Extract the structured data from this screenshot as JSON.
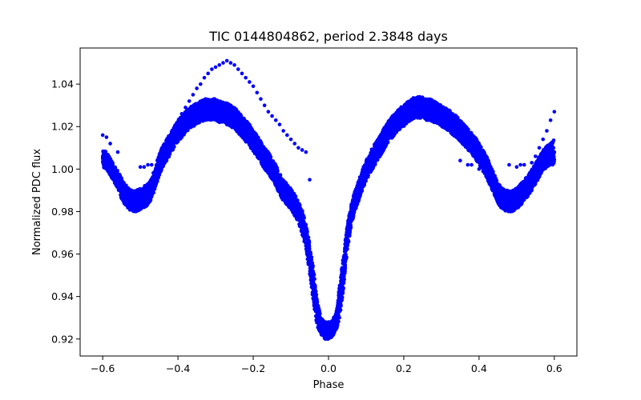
{
  "chart_data": {
    "type": "scatter",
    "title": "TIC 0144804862, period 2.3848 days",
    "xlabel": "Phase",
    "ylabel": "Normalized PDC flux",
    "xlim": [
      -0.66,
      0.66
    ],
    "ylim": [
      0.912,
      1.057
    ],
    "xticks": [
      -0.6,
      -0.4,
      -0.2,
      0.0,
      0.2,
      0.4,
      0.6
    ],
    "xtick_labels": [
      "−0.6",
      "−0.4",
      "−0.2",
      "0.0",
      "0.2",
      "0.4",
      "0.6"
    ],
    "yticks": [
      0.92,
      0.94,
      0.96,
      0.98,
      1.0,
      1.02,
      1.04
    ],
    "ytick_labels": [
      "0.92",
      "0.94",
      "0.96",
      "0.98",
      "1.00",
      "1.02",
      "1.04"
    ],
    "grid": false,
    "marker_color": "#0000ff",
    "series": [
      {
        "name": "",
        "x": [
          -0.6,
          -0.59,
          -0.58,
          -0.57,
          -0.56,
          -0.55,
          -0.54,
          -0.53,
          -0.52,
          -0.51,
          -0.5,
          -0.49,
          -0.48,
          -0.47,
          -0.46,
          -0.45,
          -0.44,
          -0.43,
          -0.42,
          -0.41,
          -0.4,
          -0.39,
          -0.38,
          -0.37,
          -0.36,
          -0.35,
          -0.34,
          -0.33,
          -0.32,
          -0.31,
          -0.3,
          -0.29,
          -0.28,
          -0.27,
          -0.26,
          -0.25,
          -0.24,
          -0.23,
          -0.22,
          -0.21,
          -0.2,
          -0.19,
          -0.18,
          -0.17,
          -0.16,
          -0.15,
          -0.14,
          -0.13,
          -0.12,
          -0.11,
          -0.1,
          -0.09,
          -0.08,
          -0.07,
          -0.06,
          -0.05,
          -0.04,
          -0.03,
          -0.02,
          -0.01,
          0.0,
          0.01,
          0.02,
          0.03,
          0.04,
          0.05,
          0.06,
          0.07,
          0.08,
          0.09,
          0.1,
          0.11,
          0.12,
          0.13,
          0.14,
          0.15,
          0.16,
          0.17,
          0.18,
          0.19,
          0.2,
          0.21,
          0.22,
          0.23,
          0.24,
          0.25,
          0.26,
          0.27,
          0.28,
          0.29,
          0.3,
          0.31,
          0.32,
          0.33,
          0.34,
          0.35,
          0.36,
          0.37,
          0.38,
          0.39,
          0.4,
          0.41,
          0.42,
          0.43,
          0.44,
          0.45,
          0.46,
          0.47,
          0.48,
          0.49,
          0.5,
          0.51,
          0.52,
          0.53,
          0.54,
          0.55,
          0.56,
          0.57,
          0.58,
          0.59,
          0.6
        ],
        "y": [
          1.005,
          1.004,
          1.001,
          0.998,
          0.995,
          0.991,
          0.988,
          0.986,
          0.985,
          0.985,
          0.986,
          0.987,
          0.988,
          0.991,
          0.996,
          1.002,
          1.006,
          1.009,
          1.012,
          1.015,
          1.018,
          1.02,
          1.022,
          1.024,
          1.025,
          1.026,
          1.027,
          1.028,
          1.028,
          1.028,
          1.028,
          1.027,
          1.027,
          1.026,
          1.025,
          1.024,
          1.022,
          1.02,
          1.018,
          1.016,
          1.013,
          1.011,
          1.008,
          1.005,
          1.003,
          1.0,
          0.997,
          0.993,
          0.99,
          0.988,
          0.986,
          0.983,
          0.98,
          0.975,
          0.968,
          0.958,
          0.945,
          0.932,
          0.926,
          0.924,
          0.924,
          0.925,
          0.928,
          0.938,
          0.952,
          0.968,
          0.978,
          0.985,
          0.99,
          0.995,
          0.999,
          1.003,
          1.006,
          1.009,
          1.012,
          1.015,
          1.018,
          1.02,
          1.022,
          1.024,
          1.025,
          1.027,
          1.028,
          1.029,
          1.029,
          1.029,
          1.028,
          1.028,
          1.027,
          1.026,
          1.025,
          1.024,
          1.023,
          1.021,
          1.02,
          1.018,
          1.016,
          1.014,
          1.012,
          1.01,
          1.007,
          1.004,
          1.001,
          0.997,
          0.993,
          0.989,
          0.986,
          0.985,
          0.985,
          0.985,
          0.986,
          0.988,
          0.99,
          0.992,
          0.995,
          0.998,
          1.001,
          1.004,
          1.006,
          1.007,
          1.008
        ],
        "scatter_band": [
          0.004,
          0.004,
          0.004,
          0.004,
          0.004,
          0.005,
          0.005,
          0.005,
          0.005,
          0.005,
          0.005,
          0.005,
          0.005,
          0.005,
          0.005,
          0.005,
          0.005,
          0.005,
          0.005,
          0.005,
          0.005,
          0.005,
          0.005,
          0.005,
          0.005,
          0.005,
          0.005,
          0.005,
          0.005,
          0.005,
          0.005,
          0.005,
          0.005,
          0.005,
          0.005,
          0.005,
          0.005,
          0.005,
          0.005,
          0.005,
          0.005,
          0.005,
          0.005,
          0.005,
          0.005,
          0.005,
          0.005,
          0.005,
          0.005,
          0.005,
          0.005,
          0.005,
          0.005,
          0.006,
          0.006,
          0.007,
          0.008,
          0.006,
          0.004,
          0.004,
          0.004,
          0.004,
          0.004,
          0.008,
          0.008,
          0.006,
          0.005,
          0.005,
          0.005,
          0.005,
          0.005,
          0.005,
          0.005,
          0.005,
          0.005,
          0.005,
          0.005,
          0.005,
          0.005,
          0.005,
          0.005,
          0.005,
          0.005,
          0.005,
          0.005,
          0.005,
          0.005,
          0.005,
          0.005,
          0.005,
          0.005,
          0.005,
          0.005,
          0.005,
          0.005,
          0.005,
          0.005,
          0.005,
          0.005,
          0.005,
          0.005,
          0.005,
          0.005,
          0.005,
          0.005,
          0.005,
          0.005,
          0.005,
          0.005,
          0.005,
          0.005,
          0.005,
          0.005,
          0.005,
          0.005,
          0.005,
          0.005,
          0.005,
          0.005,
          0.005,
          0.006
        ]
      },
      {
        "name": "",
        "x": [
          -0.6,
          -0.59,
          -0.58,
          -0.56,
          -0.5,
          -0.49,
          -0.48,
          -0.47,
          -0.45,
          -0.43,
          -0.42,
          -0.41,
          -0.4,
          -0.39,
          -0.38,
          -0.37,
          -0.36,
          -0.35,
          -0.34,
          -0.33,
          -0.32,
          -0.31,
          -0.3,
          -0.29,
          -0.28,
          -0.27,
          -0.26,
          -0.25,
          -0.24,
          -0.23,
          -0.22,
          -0.21,
          -0.2,
          -0.19,
          -0.18,
          -0.17,
          -0.16,
          -0.15,
          -0.14,
          -0.13,
          -0.12,
          -0.11,
          -0.1,
          -0.09,
          -0.08,
          -0.07,
          -0.06,
          -0.05
        ],
        "y": [
          1.016,
          1.015,
          1.012,
          1.008,
          1.001,
          1.001,
          1.002,
          1.002,
          1.005,
          1.012,
          1.016,
          1.019,
          1.022,
          1.026,
          1.029,
          1.032,
          1.035,
          1.038,
          1.04,
          1.043,
          1.045,
          1.047,
          1.048,
          1.049,
          1.05,
          1.051,
          1.05,
          1.049,
          1.047,
          1.045,
          1.043,
          1.041,
          1.039,
          1.036,
          1.033,
          1.03,
          1.027,
          1.025,
          1.023,
          1.021,
          1.018,
          1.016,
          1.014,
          1.012,
          1.01,
          1.009,
          1.008,
          0.995
        ]
      },
      {
        "name": "",
        "x": [
          0.35,
          0.37,
          0.38,
          0.4,
          0.42,
          0.48,
          0.5,
          0.51,
          0.52,
          0.54,
          0.55,
          0.56,
          0.57,
          0.58,
          0.59,
          0.6
        ],
        "y": [
          1.004,
          1.002,
          1.002,
          1.0,
          0.998,
          1.002,
          1.001,
          1.002,
          1.002,
          1.003,
          1.006,
          1.01,
          1.014,
          1.018,
          1.023,
          1.027
        ]
      }
    ]
  }
}
